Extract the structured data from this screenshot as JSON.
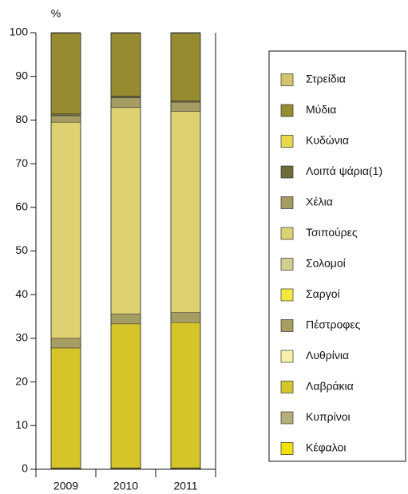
{
  "chart_data": {
    "type": "stacked-bar",
    "y_label": "%",
    "categories": [
      "2009",
      "2010",
      "2011"
    ],
    "ylim": [
      0,
      100
    ],
    "yticks": [
      0,
      10,
      20,
      30,
      40,
      50,
      60,
      70,
      80,
      90,
      100
    ],
    "legend": "right",
    "series": [
      {
        "name": "Στρείδια",
        "color": "#d3c56c",
        "values": [
          0.1,
          0.1,
          0.1
        ]
      },
      {
        "name": "Μύδια",
        "color": "#968b30",
        "values": [
          18.5,
          14.4,
          15.5
        ]
      },
      {
        "name": "Κυδώνια",
        "color": "#e9d84c",
        "values": [
          0,
          0,
          0
        ]
      },
      {
        "name": "Λοιπά ψάρια(1)",
        "color": "#6f6a3b",
        "values": [
          0.4,
          0.4,
          0.3
        ]
      },
      {
        "name": "Χέλια",
        "color": "#a49c62",
        "values": [
          1.5,
          2.2,
          2.1
        ]
      },
      {
        "name": "Τσιπούρες",
        "color": "#ddd172",
        "values": [
          49.5,
          47.3,
          46.1
        ]
      },
      {
        "name": "Σολομοί",
        "color": "#d4cd90",
        "values": [
          0,
          0,
          0
        ]
      },
      {
        "name": "Σαργοί",
        "color": "#f3e93e",
        "values": [
          0,
          0,
          0
        ]
      },
      {
        "name": "Πέστροφες",
        "color": "#a69d63",
        "values": [
          2.2,
          2.3,
          2.3
        ]
      },
      {
        "name": "Λυθρίνια",
        "color": "#f7f0a8",
        "values": [
          0,
          0,
          0
        ]
      },
      {
        "name": "Λαβράκια",
        "color": "#d6c52a",
        "values": [
          27.5,
          33.0,
          33.3
        ]
      },
      {
        "name": "Κυπρίνοι",
        "color": "#b5ad7b",
        "values": [
          0.1,
          0.1,
          0.1
        ]
      },
      {
        "name": "Κέφαλοι",
        "color": "#f2e200",
        "values": [
          0.2,
          0.2,
          0.2
        ]
      }
    ]
  }
}
